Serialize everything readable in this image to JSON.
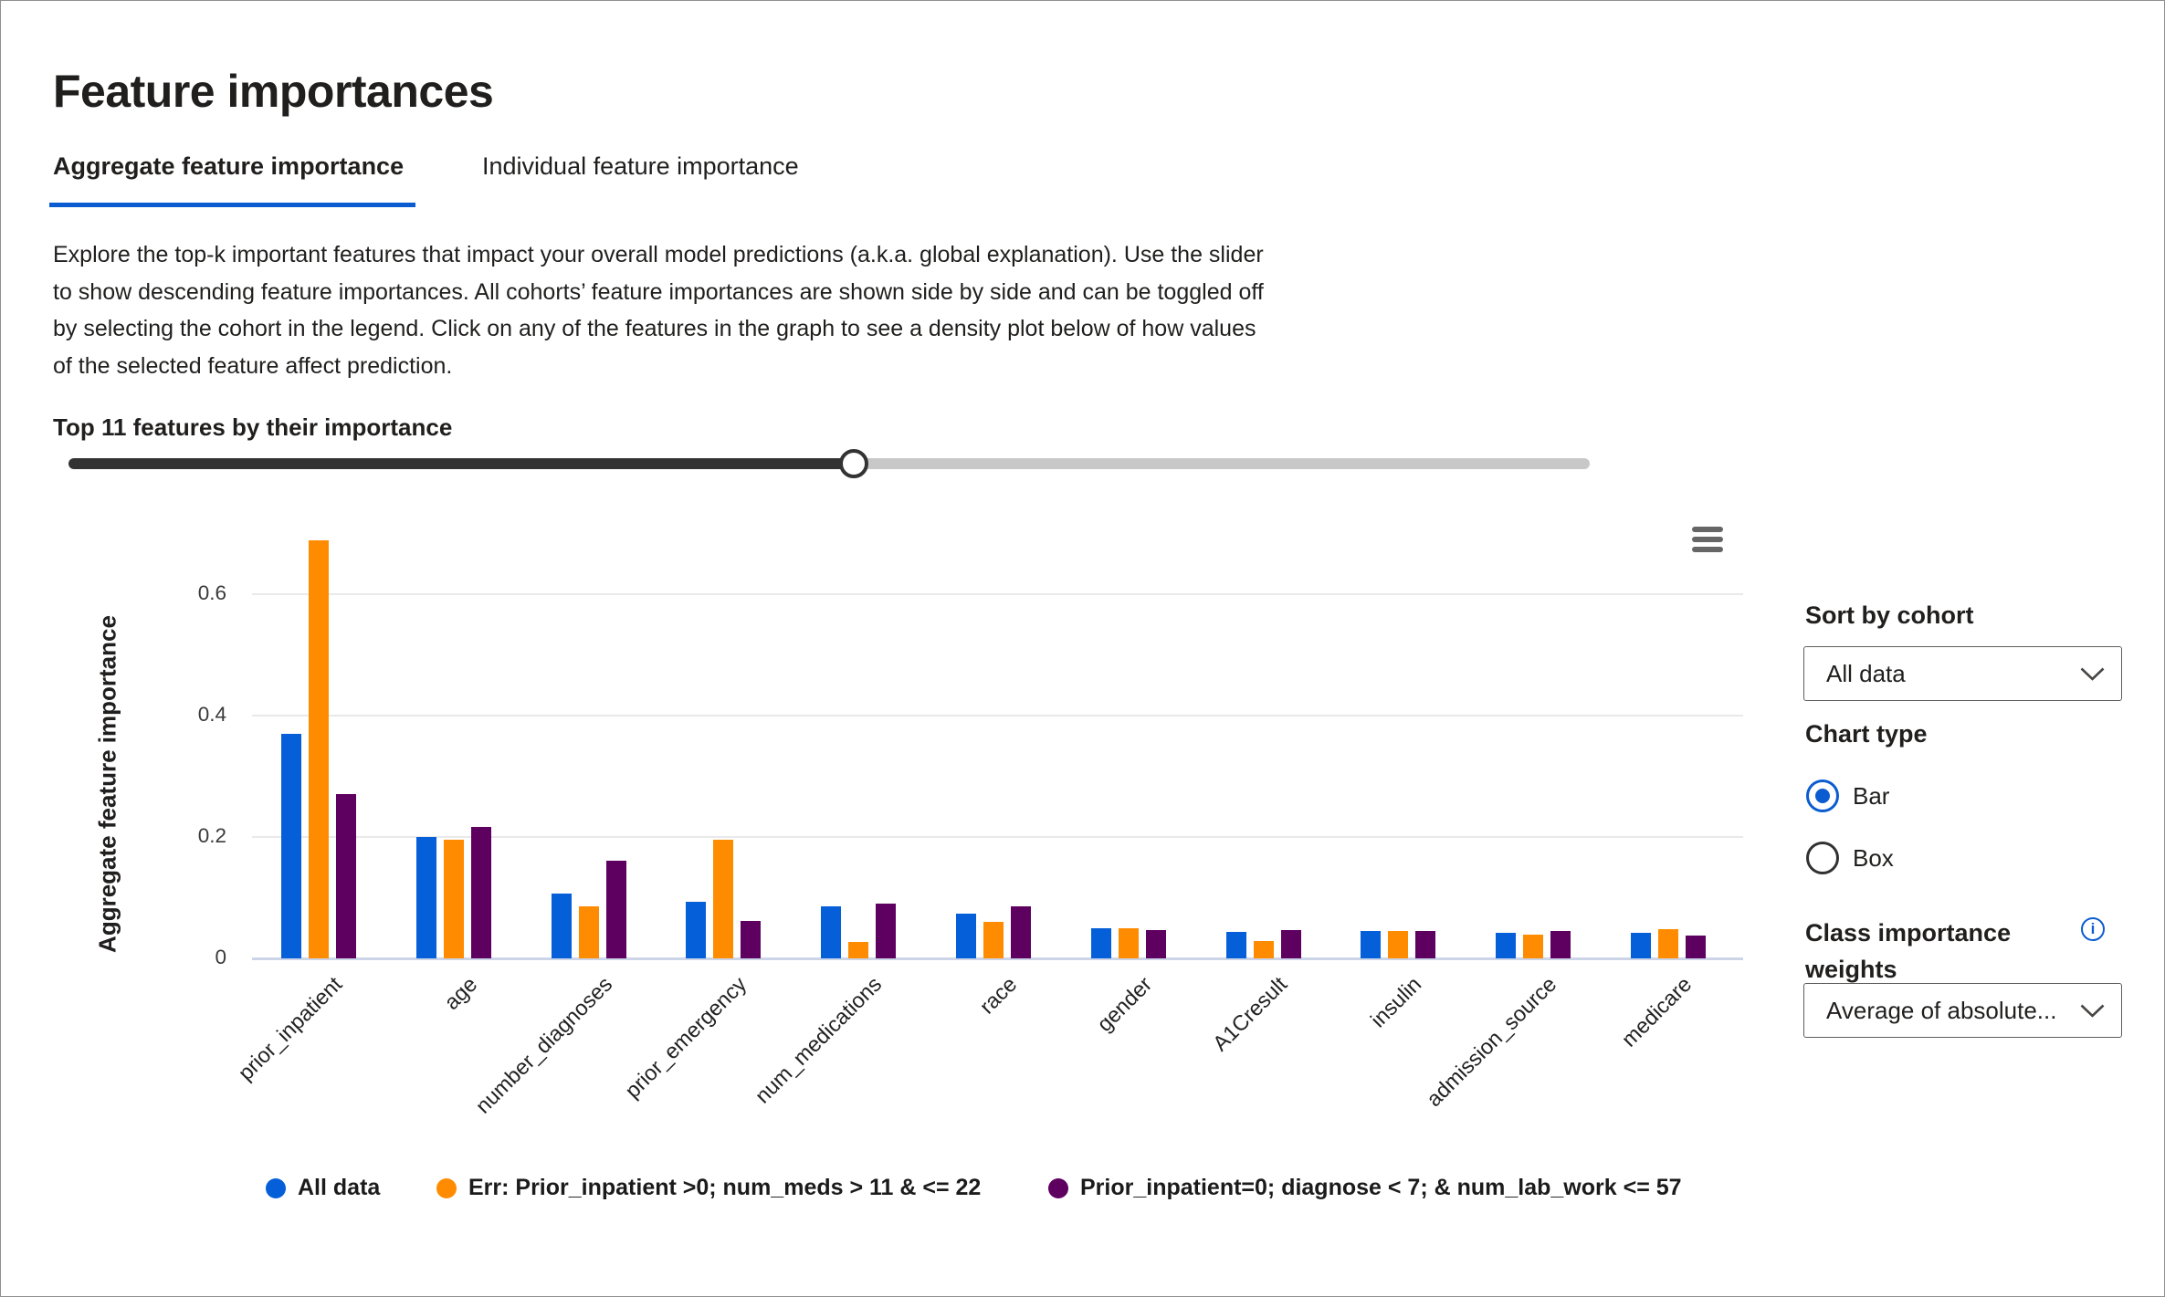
{
  "page": {
    "title": "Feature importances"
  },
  "tabs": [
    {
      "label": "Aggregate feature importance",
      "active": true
    },
    {
      "label": "Individual feature importance",
      "active": false
    }
  ],
  "description_lines": [
    "Explore the top-k important features that impact your overall model predictions (a.k.a. global explanation). Use the slider",
    "to show descending feature importances. All cohorts’ feature importances are shown side by side and can be toggled off",
    "by selecting the cohort in the legend. Click on any of the features in the graph to see a density plot below of how values",
    "of the selected feature affect prediction."
  ],
  "slider": {
    "label": "Top 11 features by their importance",
    "top_k": 11,
    "fraction": 0.516
  },
  "chart_data": {
    "type": "bar",
    "title": "",
    "xlabel": "",
    "ylabel": "Aggregate feature importance",
    "ylim": [
      0,
      0.72
    ],
    "yticks": [
      0,
      0.2,
      0.4,
      0.6
    ],
    "grid": true,
    "legend_position": "bottom",
    "categories": [
      "prior_inpatient",
      "age",
      "number_diagnoses",
      "prior_emergency",
      "num_medications",
      "race",
      "gender",
      "A1Cresult",
      "insulin",
      "admission_source",
      "medicare"
    ],
    "series": [
      {
        "name": "All data",
        "color": "#055fd9",
        "values": [
          0.37,
          0.2,
          0.107,
          0.093,
          0.085,
          0.073,
          0.05,
          0.043,
          0.045,
          0.042,
          0.042
        ]
      },
      {
        "name": "Err: Prior_inpatient >0; num_meds > 11 & <= 22",
        "color": "#ff8c00",
        "values": [
          0.688,
          0.195,
          0.086,
          0.195,
          0.027,
          0.06,
          0.05,
          0.028,
          0.045,
          0.039,
          0.048
        ]
      },
      {
        "name": "Prior_inpatient=0; diagnose < 7; & num_lab_work <= 57",
        "color": "#5e0060",
        "values": [
          0.27,
          0.217,
          0.161,
          0.062,
          0.09,
          0.086,
          0.047,
          0.047,
          0.045,
          0.045,
          0.037
        ]
      }
    ]
  },
  "legend": [
    {
      "label": "All data",
      "color": "#055fd9"
    },
    {
      "label": "Err: Prior_inpatient >0; num_meds > 11 & <= 22",
      "color": "#ff8c00"
    },
    {
      "label": "Prior_inpatient=0; diagnose < 7; & num_lab_work <= 57",
      "color": "#5e0060"
    }
  ],
  "panel": {
    "sort_by_cohort_label": "Sort by cohort",
    "sort_dropdown_value": "All data",
    "chart_type_label": "Chart type",
    "radio_options": [
      {
        "label": "Bar",
        "selected": true
      },
      {
        "label": "Box",
        "selected": false
      }
    ],
    "class_weights_label": "Class importance weights",
    "class_weights_dropdown_value": "Average of absolute..."
  },
  "icons": {
    "chart_menu": "burger-menu-icon",
    "dropdown_arrow": "chevron-down-icon",
    "info": "info-icon"
  },
  "colors": {
    "accent_blue": "#0b5cd0",
    "slider_filled": "#333333",
    "slider_rest": "#c8c8c8",
    "axis_line": "#ccd5e8",
    "gridline": "#e9e9e9"
  }
}
